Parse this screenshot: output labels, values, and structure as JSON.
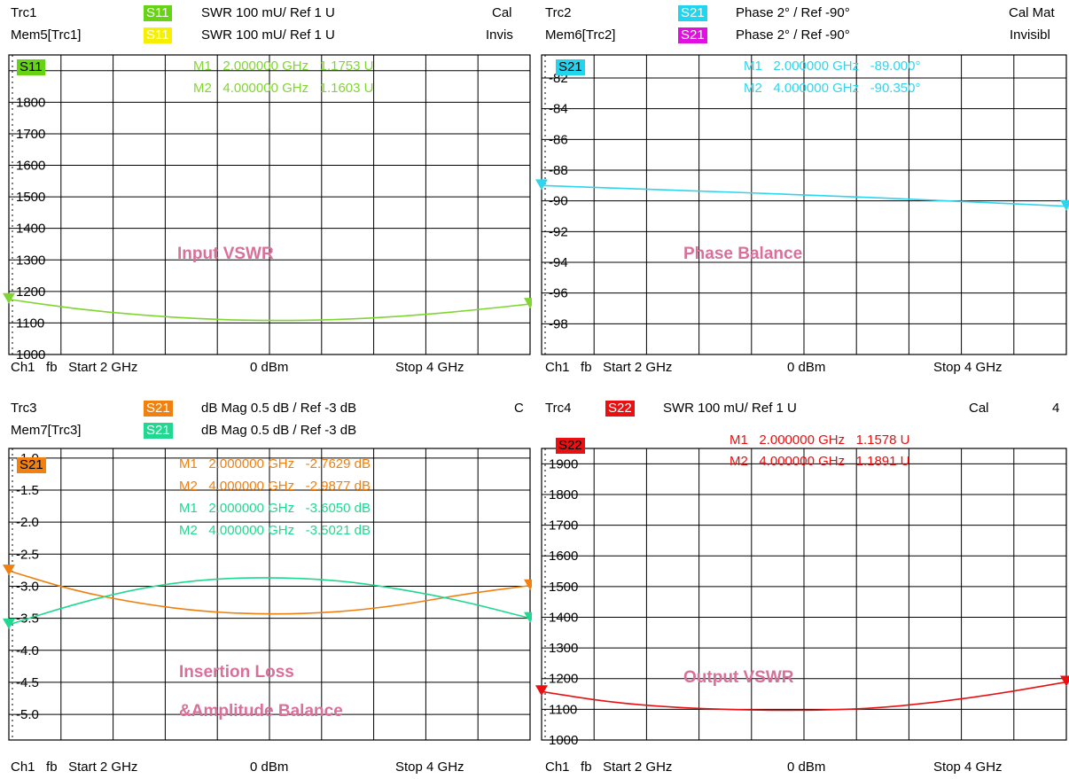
{
  "footer": {
    "ch": "Ch1",
    "fb": "fb",
    "start": "Start  2 GHz",
    "power": "0 dBm",
    "stop": "Stop  4 GHz"
  },
  "panels": [
    {
      "id": "vswr-in",
      "header": [
        {
          "trace": "Trc1",
          "param": "S11",
          "badge_color": "#66d414",
          "fmt": "SWR  100 mU/  Ref 1 U",
          "right": "Cal"
        },
        {
          "trace": "Mem5[Trc1]",
          "param": "S11",
          "badge_color": "#f6f000",
          "fmt": "SWR  100 mU/  Ref 1 U",
          "right": "Invis"
        }
      ],
      "tag": "S11",
      "tag_color": "#66d414",
      "markers": [
        {
          "name": "M1",
          "freq": "2.000000 GHz",
          "val": "1.1753 U",
          "color": "#80d630"
        },
        {
          "name": "M2",
          "freq": "4.000000 GHz",
          "val": "1.1603 U",
          "color": "#80d630"
        }
      ],
      "label": "Input VSWR"
    },
    {
      "id": "phase",
      "header": [
        {
          "trace": "Trc2",
          "param": "S21",
          "badge_color": "#22d4ee",
          "fmt": "Phase  2° /  Ref -90°",
          "right": "Cal Mat"
        },
        {
          "trace": "Mem6[Trc2]",
          "param": "S21",
          "badge_color": "#e010e0",
          "fmt": "Phase  2° /  Ref -90°",
          "right": "Invisibl"
        }
      ],
      "tag": "S21",
      "tag_color": "#22d4ee",
      "markers": [
        {
          "name": "M1",
          "freq": "2.000000 GHz",
          "val": "-89.000°",
          "color": "#30d4ee"
        },
        {
          "name": "M2",
          "freq": "4.000000 GHz",
          "val": "-90.350°",
          "color": "#30d4ee"
        }
      ],
      "label": "Phase Balance"
    },
    {
      "id": "il",
      "header": [
        {
          "trace": "Trc3",
          "param": "S21",
          "badge_color": "#f08010",
          "fmt": "dB Mag  0.5 dB /  Ref -3 dB",
          "right": "C"
        },
        {
          "trace": "Mem7[Trc3]",
          "param": "S21",
          "badge_color": "#20d890",
          "fmt": "dB Mag  0.5 dB /  Ref -3 dB",
          "right": ""
        }
      ],
      "tag": "S21",
      "tag_color": "#f08010",
      "markers": [
        {
          "name": "M1",
          "freq": "2.000000 GHz",
          "val": "-2.7629 dB",
          "color": "#f08010"
        },
        {
          "name": "M2",
          "freq": "4.000000 GHz",
          "val": "-2.9877 dB",
          "color": "#f08010"
        },
        {
          "name": "M1",
          "freq": "2.000000 GHz",
          "val": "-3.6050 dB",
          "color": "#20d890"
        },
        {
          "name": "M2",
          "freq": "4.000000 GHz",
          "val": "-3.5021 dB",
          "color": "#20d890"
        }
      ],
      "label": "Insertion Loss",
      "label2": "&Amplitude Balance"
    },
    {
      "id": "vswr-out",
      "header": [
        {
          "trace": "Trc4",
          "param": "S22",
          "badge_color": "#e81010",
          "fmt": "SWR  100 mU/  Ref 1 U",
          "right": "Cal"
        }
      ],
      "header_extra": "4",
      "tag": "S22",
      "tag_color": "#e81010",
      "markers": [
        {
          "name": "M1",
          "freq": "2.000000 GHz",
          "val": "1.1578 U",
          "color": "#e81010"
        },
        {
          "name": "M2",
          "freq": "4.000000 GHz",
          "val": "1.1891 U",
          "color": "#e81010"
        }
      ],
      "label": "Output VSWR"
    }
  ],
  "chart_data": [
    {
      "type": "line",
      "ylabel": "",
      "xlabel": "",
      "yticks": [
        "1900",
        "1800",
        "1700",
        "1600",
        "1500",
        "1400",
        "1300",
        "1200",
        "1100",
        "1000"
      ],
      "xlim": [
        2,
        4
      ],
      "ylim": [
        1.0,
        1.95
      ],
      "series": [
        {
          "color": "#80d630",
          "x": [
            2.0,
            2.25,
            2.5,
            2.75,
            3.0,
            3.25,
            3.5,
            3.75,
            4.0
          ],
          "y": [
            1.175,
            1.145,
            1.125,
            1.112,
            1.107,
            1.11,
            1.12,
            1.138,
            1.16
          ]
        }
      ]
    },
    {
      "type": "line",
      "ylabel": "",
      "xlabel": "",
      "yticks": [
        "-82",
        "-84",
        "-86",
        "-88",
        "-90",
        "-92",
        "-94",
        "-96",
        "-98"
      ],
      "xlim": [
        2,
        4
      ],
      "ylim": [
        -100,
        -80.5
      ],
      "series": [
        {
          "color": "#30d4ee",
          "x": [
            2.0,
            2.5,
            3.0,
            3.5,
            4.0
          ],
          "y": [
            -89.0,
            -89.3,
            -89.6,
            -89.95,
            -90.35
          ]
        }
      ]
    },
    {
      "type": "line",
      "ylabel": "",
      "xlabel": "",
      "yticks": [
        "-1.0",
        "-1.5",
        "-2.0",
        "-2.5",
        "-3.0",
        "-3.5",
        "-4.0",
        "-4.5",
        "-5.0"
      ],
      "xlim": [
        2,
        4
      ],
      "ylim": [
        -5.4,
        -0.85
      ],
      "series": [
        {
          "color": "#f08010",
          "x": [
            2.0,
            2.25,
            2.5,
            2.75,
            3.0,
            3.25,
            3.5,
            3.75,
            4.0
          ],
          "y": [
            -2.76,
            -3.07,
            -3.27,
            -3.4,
            -3.44,
            -3.41,
            -3.3,
            -3.12,
            -2.99
          ]
        },
        {
          "color": "#20d890",
          "x": [
            2.0,
            2.25,
            2.5,
            2.75,
            3.0,
            3.25,
            3.5,
            3.75,
            4.0
          ],
          "y": [
            -3.6,
            -3.28,
            -3.03,
            -2.89,
            -2.86,
            -2.9,
            -3.04,
            -3.24,
            -3.5
          ]
        }
      ]
    },
    {
      "type": "line",
      "ylabel": "",
      "xlabel": "",
      "yticks": [
        "1900",
        "1800",
        "1700",
        "1600",
        "1500",
        "1400",
        "1300",
        "1200",
        "1100",
        "1000"
      ],
      "xlim": [
        2,
        4
      ],
      "ylim": [
        1.0,
        1.95
      ],
      "series": [
        {
          "color": "#e81010",
          "x": [
            2.0,
            2.25,
            2.5,
            2.75,
            3.0,
            3.25,
            3.5,
            3.75,
            4.0
          ],
          "y": [
            1.158,
            1.124,
            1.106,
            1.098,
            1.096,
            1.102,
            1.122,
            1.152,
            1.189
          ]
        }
      ]
    }
  ]
}
